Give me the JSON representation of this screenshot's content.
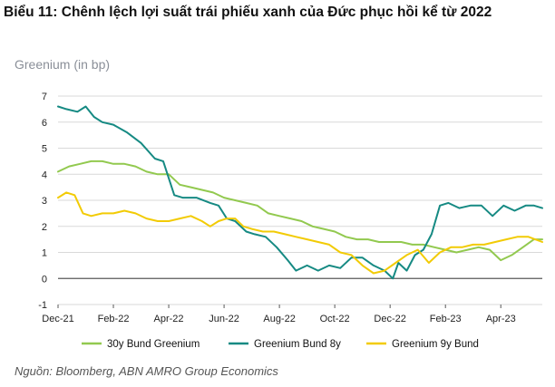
{
  "title": "Biểu 11: Chênh lệch lợi suất trái phiếu xanh của Đức phục hồi kể từ 2022",
  "ylabel": "Greenium (in bp)",
  "source": "Nguồn: Bloomberg, ABN AMRO Group Economics",
  "colors": {
    "s30y": "#92c94f",
    "s8y": "#168a83",
    "s9y": "#f2cb05",
    "grid": "#d9d9d9",
    "axis": "#595959"
  },
  "chart_data": {
    "type": "line",
    "title": "Greenium (in bp)",
    "x_labels": [
      "Dec-21",
      "Feb-22",
      "Apr-22",
      "Jun-22",
      "Aug-22",
      "Oct-22",
      "Dec-22",
      "Feb-23",
      "Apr-23"
    ],
    "x_range_months": [
      0,
      17.5
    ],
    "ylim": [
      -1,
      7
    ],
    "y_ticks": [
      "-1",
      "0",
      "1",
      "2",
      "3",
      "4",
      "5",
      "6",
      "7"
    ],
    "grid": "horizontal",
    "legend_position": "bottom",
    "series": [
      {
        "name": "30y Bund Greenium",
        "color_key": "s30y",
        "points": [
          [
            0,
            4.1
          ],
          [
            0.4,
            4.3
          ],
          [
            0.8,
            4.4
          ],
          [
            1.2,
            4.5
          ],
          [
            1.6,
            4.5
          ],
          [
            2,
            4.4
          ],
          [
            2.4,
            4.4
          ],
          [
            2.8,
            4.3
          ],
          [
            3.2,
            4.1
          ],
          [
            3.6,
            4.0
          ],
          [
            4,
            4.0
          ],
          [
            4.4,
            3.6
          ],
          [
            4.8,
            3.5
          ],
          [
            5.2,
            3.4
          ],
          [
            5.6,
            3.3
          ],
          [
            6,
            3.1
          ],
          [
            6.4,
            3.0
          ],
          [
            6.8,
            2.9
          ],
          [
            7.2,
            2.8
          ],
          [
            7.6,
            2.5
          ],
          [
            8,
            2.4
          ],
          [
            8.4,
            2.3
          ],
          [
            8.8,
            2.2
          ],
          [
            9.2,
            2.0
          ],
          [
            9.6,
            1.9
          ],
          [
            10,
            1.8
          ],
          [
            10.4,
            1.6
          ],
          [
            10.8,
            1.5
          ],
          [
            11.2,
            1.5
          ],
          [
            11.6,
            1.4
          ],
          [
            12,
            1.4
          ],
          [
            12.4,
            1.4
          ],
          [
            12.8,
            1.3
          ],
          [
            13.2,
            1.3
          ],
          [
            13.6,
            1.2
          ],
          [
            14,
            1.1
          ],
          [
            14.4,
            1.0
          ],
          [
            14.8,
            1.1
          ],
          [
            15.2,
            1.2
          ],
          [
            15.6,
            1.1
          ],
          [
            16,
            0.7
          ],
          [
            16.4,
            0.9
          ],
          [
            16.8,
            1.2
          ],
          [
            17.2,
            1.5
          ],
          [
            17.5,
            1.5
          ]
        ]
      },
      {
        "name": "Greenium Bund 8y",
        "color_key": "s8y",
        "points": [
          [
            0,
            6.6
          ],
          [
            0.3,
            6.5
          ],
          [
            0.7,
            6.4
          ],
          [
            1.0,
            6.6
          ],
          [
            1.3,
            6.2
          ],
          [
            1.6,
            6.0
          ],
          [
            2,
            5.9
          ],
          [
            2.5,
            5.6
          ],
          [
            3,
            5.2
          ],
          [
            3.5,
            4.6
          ],
          [
            3.8,
            4.5
          ],
          [
            4.2,
            3.2
          ],
          [
            4.5,
            3.1
          ],
          [
            5,
            3.1
          ],
          [
            5.5,
            2.9
          ],
          [
            5.8,
            2.8
          ],
          [
            6.1,
            2.3
          ],
          [
            6.4,
            2.2
          ],
          [
            6.8,
            1.8
          ],
          [
            7.1,
            1.7
          ],
          [
            7.5,
            1.6
          ],
          [
            7.9,
            1.2
          ],
          [
            8.3,
            0.7
          ],
          [
            8.6,
            0.3
          ],
          [
            9,
            0.5
          ],
          [
            9.4,
            0.3
          ],
          [
            9.8,
            0.5
          ],
          [
            10.2,
            0.4
          ],
          [
            10.6,
            0.8
          ],
          [
            11,
            0.8
          ],
          [
            11.4,
            0.5
          ],
          [
            11.8,
            0.3
          ],
          [
            12.1,
            0.0
          ],
          [
            12.3,
            0.6
          ],
          [
            12.6,
            0.3
          ],
          [
            12.9,
            0.9
          ],
          [
            13.2,
            1.1
          ],
          [
            13.5,
            1.7
          ],
          [
            13.8,
            2.8
          ],
          [
            14.1,
            2.9
          ],
          [
            14.5,
            2.7
          ],
          [
            14.9,
            2.8
          ],
          [
            15.3,
            2.8
          ],
          [
            15.7,
            2.4
          ],
          [
            16.1,
            2.8
          ],
          [
            16.5,
            2.6
          ],
          [
            16.9,
            2.8
          ],
          [
            17.2,
            2.8
          ],
          [
            17.5,
            2.7
          ]
        ]
      },
      {
        "name": "Greenium 9y Bund",
        "color_key": "s9y",
        "points": [
          [
            0,
            3.1
          ],
          [
            0.3,
            3.3
          ],
          [
            0.6,
            3.2
          ],
          [
            0.9,
            2.5
          ],
          [
            1.2,
            2.4
          ],
          [
            1.6,
            2.5
          ],
          [
            2,
            2.5
          ],
          [
            2.4,
            2.6
          ],
          [
            2.8,
            2.5
          ],
          [
            3.2,
            2.3
          ],
          [
            3.6,
            2.2
          ],
          [
            4,
            2.2
          ],
          [
            4.4,
            2.3
          ],
          [
            4.8,
            2.4
          ],
          [
            5.2,
            2.2
          ],
          [
            5.5,
            2.0
          ],
          [
            5.8,
            2.2
          ],
          [
            6.1,
            2.3
          ],
          [
            6.4,
            2.3
          ],
          [
            6.7,
            2.0
          ],
          [
            7,
            1.9
          ],
          [
            7.4,
            1.8
          ],
          [
            7.8,
            1.8
          ],
          [
            8.2,
            1.7
          ],
          [
            8.6,
            1.6
          ],
          [
            9,
            1.5
          ],
          [
            9.4,
            1.4
          ],
          [
            9.8,
            1.3
          ],
          [
            10.2,
            1.0
          ],
          [
            10.6,
            0.9
          ],
          [
            11,
            0.5
          ],
          [
            11.4,
            0.2
          ],
          [
            11.8,
            0.3
          ],
          [
            12.2,
            0.6
          ],
          [
            12.6,
            0.9
          ],
          [
            13,
            1.1
          ],
          [
            13.4,
            0.6
          ],
          [
            13.8,
            1.0
          ],
          [
            14.2,
            1.2
          ],
          [
            14.6,
            1.2
          ],
          [
            15,
            1.3
          ],
          [
            15.4,
            1.3
          ],
          [
            15.8,
            1.4
          ],
          [
            16.2,
            1.5
          ],
          [
            16.6,
            1.6
          ],
          [
            17,
            1.6
          ],
          [
            17.5,
            1.4
          ]
        ]
      }
    ]
  }
}
